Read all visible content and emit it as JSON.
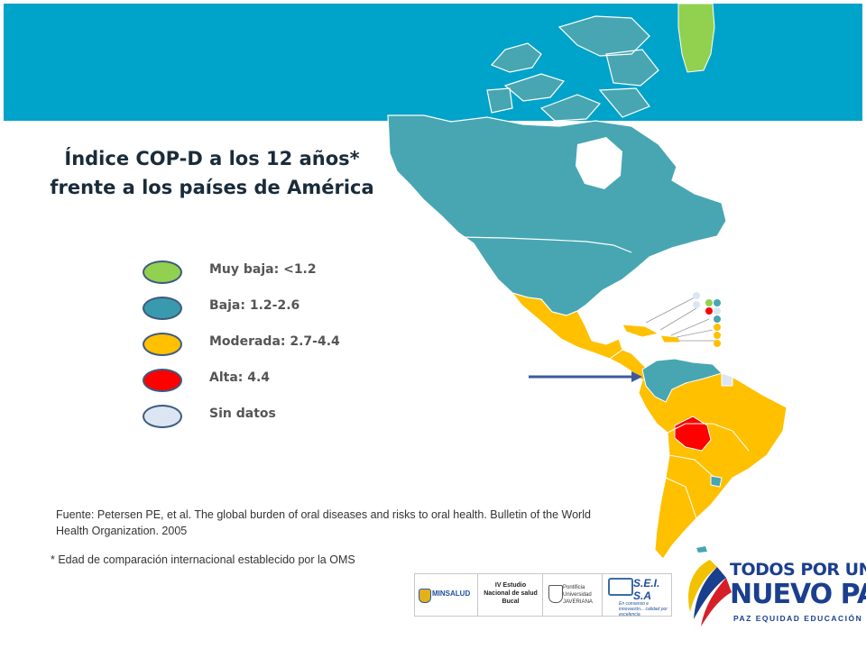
{
  "title_line1": "Índice COP-D a los 12 años*",
  "title_line2": "frente a los países de América",
  "legend": [
    {
      "label": "Muy baja: <1.2",
      "color": "#92d050"
    },
    {
      "label": "Baja: 1.2-2.6",
      "color": "#3a9aad"
    },
    {
      "label": "Moderada: 2.7-4.4",
      "color": "#ffc000"
    },
    {
      "label": "Alta: 4.4",
      "color": "#ff0000"
    },
    {
      "label": "Sin datos",
      "color": "#dce6f2"
    }
  ],
  "map_colors": {
    "very_low": "#92d050",
    "low": "#47a6b2",
    "moderate": "#ffc000",
    "high": "#ff0000",
    "no_data": "#dce6f2",
    "band": "#00a3c9",
    "arrow": "#3d5a9e"
  },
  "source": "Fuente: Petersen PE, et al. The global burden of oral diseases and risks to oral health. Bulletin of the World Health Organization. 2005",
  "footnote": "* Edad de comparación internacional establecido por la OMS",
  "logos": {
    "minsalud": "MINSALUD",
    "estudio": "IV Estudio Nacional de salud Bucal",
    "javeriana": "Pontificia Universidad JAVERIANA",
    "sei": "S.E.I. S.A",
    "sei_tag": "En consenso e innovación... calidad por excelencia"
  },
  "brand": {
    "line1": "TODOS POR UN",
    "line2": "NUEVO PAÍS",
    "line3": "PAZ EQUIDAD EDUCACIÓN",
    "colors": [
      "#f2c200",
      "#1b3f8f",
      "#d62027"
    ]
  }
}
